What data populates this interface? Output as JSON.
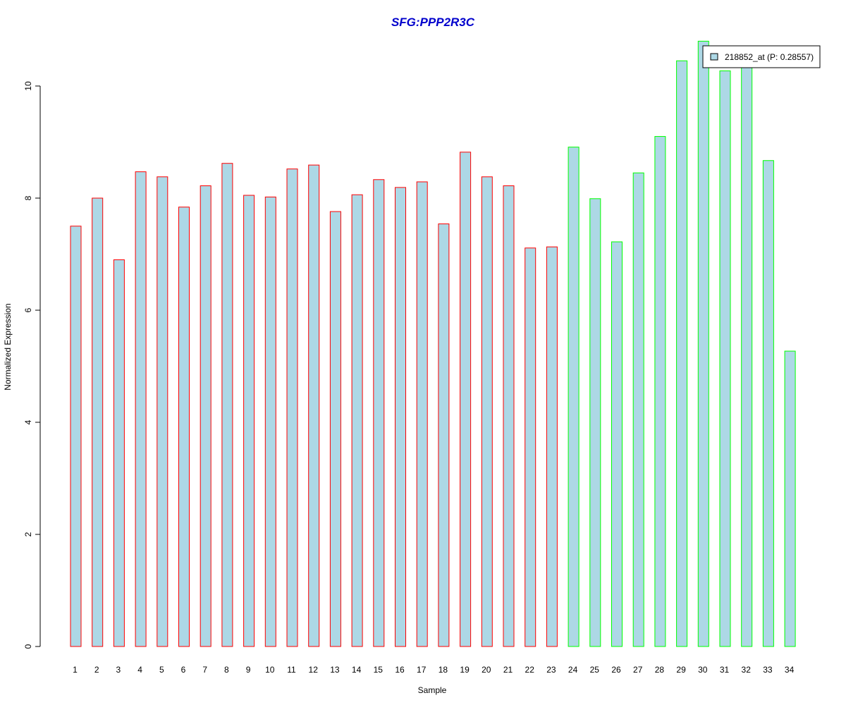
{
  "colors": {
    "bar_fill": "#add8e6",
    "group1_border": "#ff0000",
    "group2_border": "#00ff00",
    "title": "#0000cc",
    "axis": "#000000"
  },
  "chart_data": {
    "type": "bar",
    "title": "SFG:PPP2R3C",
    "xlabel": "Sample",
    "ylabel": "Normalized Expression",
    "ylim": [
      0,
      10.8
    ],
    "y_ticks": [
      "0",
      "2",
      "4",
      "6",
      "8",
      "10"
    ],
    "categories": [
      "1",
      "2",
      "3",
      "4",
      "5",
      "6",
      "7",
      "8",
      "9",
      "10",
      "11",
      "12",
      "13",
      "14",
      "15",
      "16",
      "17",
      "18",
      "19",
      "20",
      "21",
      "22",
      "23",
      "24",
      "25",
      "26",
      "27",
      "28",
      "29",
      "30",
      "31",
      "32",
      "33",
      "34"
    ],
    "values": [
      7.5,
      8.0,
      6.9,
      8.47,
      8.38,
      7.84,
      8.22,
      8.62,
      8.05,
      8.02,
      8.52,
      8.59,
      7.76,
      8.06,
      8.33,
      8.19,
      8.29,
      7.54,
      8.82,
      8.38,
      8.22,
      7.11,
      7.13,
      8.91,
      7.99,
      7.22,
      8.45,
      9.1,
      10.45,
      10.8,
      10.27,
      10.35,
      8.67,
      5.27
    ],
    "groups": [
      "red",
      "red",
      "red",
      "red",
      "red",
      "red",
      "red",
      "red",
      "red",
      "red",
      "red",
      "red",
      "red",
      "red",
      "red",
      "red",
      "red",
      "red",
      "red",
      "red",
      "red",
      "red",
      "red",
      "green",
      "green",
      "green",
      "green",
      "green",
      "green",
      "green",
      "green",
      "green",
      "green",
      "green"
    ],
    "legend": {
      "entries": [
        "218852_at (P: 0.28557)"
      ],
      "placement": "top-right"
    },
    "grid": false
  }
}
